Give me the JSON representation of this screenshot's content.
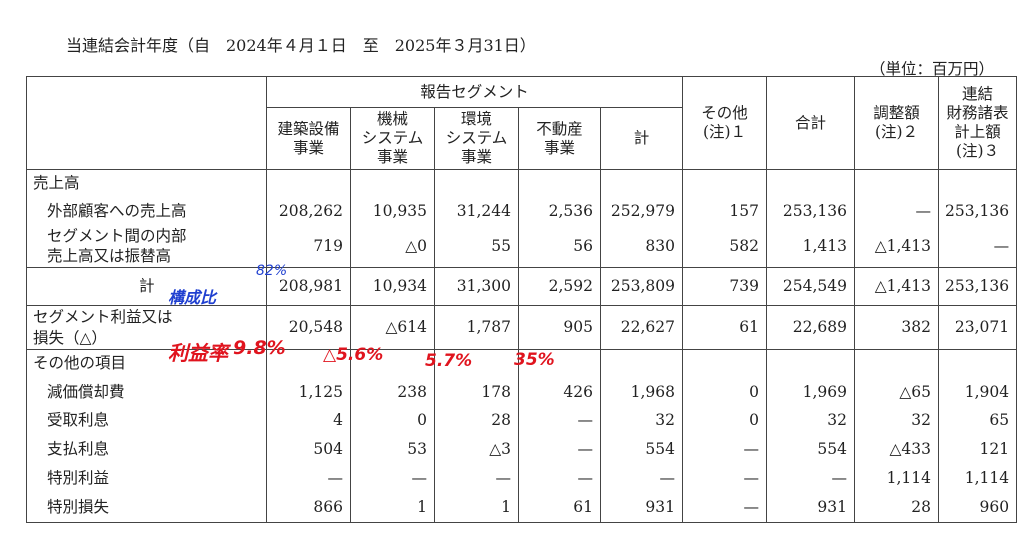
{
  "title": "当連結会計年度（自　2024年４月１日　至　2025年３月31日）",
  "unit": "（単位：百万円）",
  "headers": {
    "reportable_segments": "報告セグメント",
    "columns": [
      "建築設備\n事業",
      "機械\nシステム\n事業",
      "環境\nシステム\n事業",
      "不動産\n事業",
      "計",
      "その他\n(注)１",
      "合計",
      "調整額\n(注)２",
      "連結\n財務諸表\n計上額\n(注)３"
    ]
  },
  "rows": {
    "sales_header": "売上高",
    "external": {
      "label": "外部顧客への売上高",
      "values": [
        "208,262",
        "10,935",
        "31,244",
        "2,536",
        "252,979",
        "157",
        "253,136",
        "—",
        "253,136"
      ]
    },
    "internal": {
      "label": "セグメント間の内部\n売上高又は振替高",
      "values": [
        "719",
        "△0",
        "55",
        "56",
        "830",
        "582",
        "1,413",
        "△1,413",
        "—"
      ]
    },
    "total": {
      "label": "計",
      "values": [
        "208,981",
        "10,934",
        "31,300",
        "2,592",
        "253,809",
        "739",
        "254,549",
        "△1,413",
        "253,136"
      ]
    },
    "profit": {
      "label": "セグメント利益又は\n損失（△）",
      "values": [
        "20,548",
        "△614",
        "1,787",
        "905",
        "22,627",
        "61",
        "22,689",
        "382",
        "23,071"
      ]
    },
    "other_header": "その他の項目",
    "depreciation": {
      "label": "減価償却費",
      "values": [
        "1,125",
        "238",
        "178",
        "426",
        "1,968",
        "0",
        "1,969",
        "△65",
        "1,904"
      ]
    },
    "interest_income": {
      "label": "受取利息",
      "values": [
        "4",
        "0",
        "28",
        "—",
        "32",
        "0",
        "32",
        "32",
        "65"
      ]
    },
    "interest_paid": {
      "label": "支払利息",
      "values": [
        "504",
        "53",
        "△3",
        "—",
        "554",
        "—",
        "554",
        "△433",
        "121"
      ]
    },
    "special_gain": {
      "label": "特別利益",
      "values": [
        "—",
        "—",
        "—",
        "—",
        "—",
        "—",
        "—",
        "1,114",
        "1,114"
      ]
    },
    "special_loss": {
      "label": "特別損失",
      "values": [
        "866",
        "1",
        "1",
        "61",
        "931",
        "—",
        "931",
        "28",
        "960"
      ]
    }
  },
  "annotations": {
    "composition_ratio_label": "構成比",
    "composition_ratio_value": "82%",
    "margin_label": "利益率",
    "margin_building": "9.8%",
    "margin_machinery": "△5.6%",
    "margin_environment": "5.7%",
    "margin_realestate": "35%"
  }
}
